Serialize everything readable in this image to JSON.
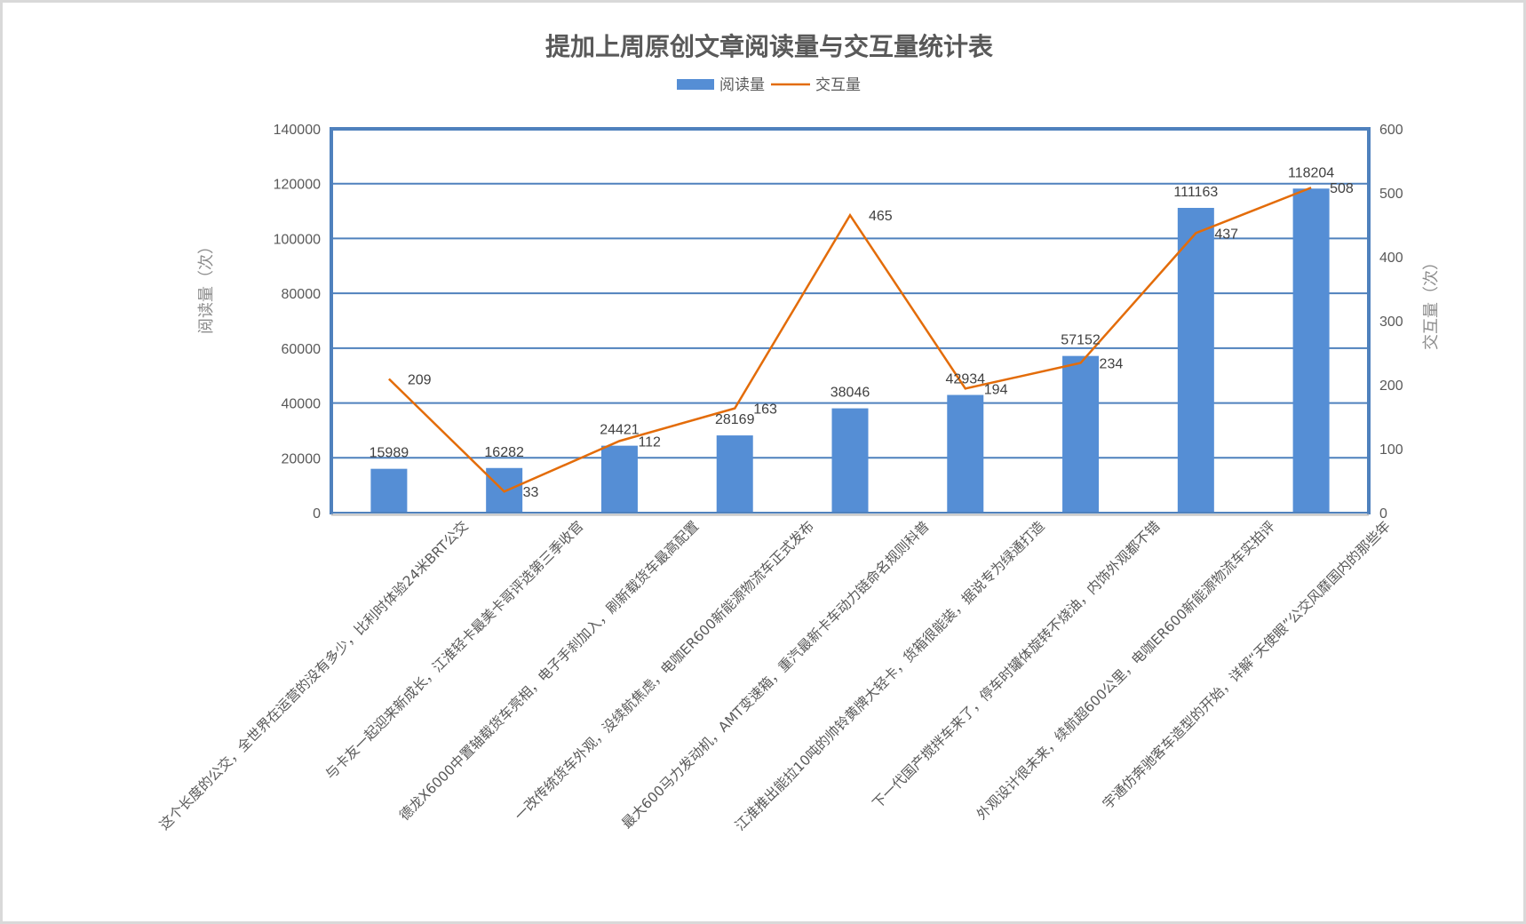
{
  "chart_data": {
    "type": "bar+line",
    "title": "提加上周原创文章阅读量与交互量统计表",
    "legend": [
      {
        "name": "阅读量",
        "type": "bar",
        "color": "#558ED5"
      },
      {
        "name": "交互量",
        "type": "line",
        "color": "#E36C09"
      }
    ],
    "legend_position": "top",
    "ylabel": "阅读量（次）",
    "y2label": "交互量（次）",
    "ylim": [
      0,
      140000
    ],
    "y2lim": [
      0,
      600
    ],
    "yticks": [
      0,
      20000,
      40000,
      60000,
      80000,
      100000,
      120000,
      140000
    ],
    "y2ticks": [
      0,
      100,
      200,
      300,
      400,
      500,
      600
    ],
    "grid": true,
    "categories": [
      "这个长度的公交，全世界在运营的没有多少，比利时体验24米BRT公交",
      "与卡友一起迎来新成长，江淮轻卡最美卡哥评选第三季收官",
      "德龙X6000中置轴载货车亮相，电子手刹加入，刷新载货车最高配置",
      "一改传统货车外观，没续航焦虑，电咖ER600新能源物流车正式发布",
      "最大600马力发动机，AMT变速箱，重汽最新卡车动力链命名规则科普",
      "江淮推出能拉10吨的帅铃黄牌大轻卡，货箱很能装，据说专为绿通打造",
      "下一代国产搅拌车来了，停车时罐体旋转不烧油，内饰外观都不错",
      "外观设计很未来，续航超600公里，电咖ER600新能源物流车实拍评",
      "宇通仿奔驰客车造型的开始，详解“天使眼”公交风靡国内的那些年"
    ],
    "series": [
      {
        "name": "阅读量",
        "axis": "left",
        "type": "bar",
        "values": [
          15989,
          16282,
          24421,
          28169,
          38046,
          42934,
          57152,
          111163,
          118204
        ]
      },
      {
        "name": "交互量",
        "axis": "right",
        "type": "line",
        "values": [
          209,
          33,
          112,
          163,
          465,
          194,
          234,
          437,
          508
        ]
      }
    ]
  }
}
